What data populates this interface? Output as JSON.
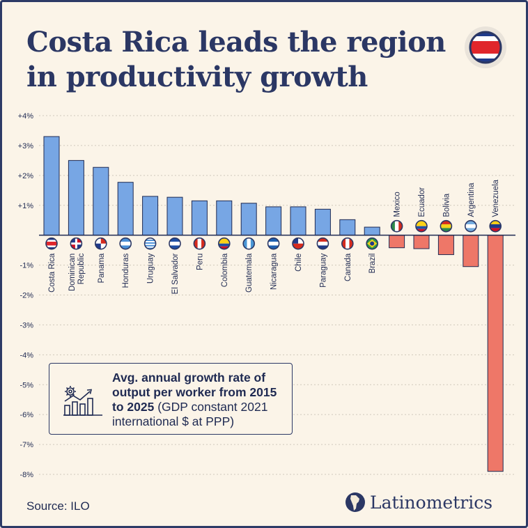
{
  "title_line1": "Costa Rica leads the region",
  "title_line2": "in productivity growth",
  "source": "Source: ILO",
  "brand": "Latinometrics",
  "legend_bold": "Avg. annual growth rate of output per worker from 2015 to 2025",
  "legend_rest": "(GDP constant 2021 international $ at PPP)",
  "colors": {
    "positive": "#77a6e4",
    "negative": "#ee7768",
    "text": "#1f2a52",
    "grid": "#cfc8bb",
    "background": "#fbf4e8",
    "border": "#2d3a66"
  },
  "chart_data": {
    "type": "bar",
    "categories": [
      "Costa Rica",
      "Dominican Republic",
      "Panama",
      "Honduras",
      "Uruguay",
      "El Salvador",
      "Peru",
      "Colombia",
      "Guatemala",
      "Nicaragua",
      "Chile",
      "Paraguay",
      "Canada",
      "Brazil",
      "Mexico",
      "Ecuador",
      "Bolivia",
      "Argentina",
      "Venezuela"
    ],
    "values": [
      3.3,
      2.5,
      2.27,
      1.77,
      1.3,
      1.27,
      1.15,
      1.15,
      1.07,
      0.95,
      0.95,
      0.87,
      0.52,
      0.27,
      -0.42,
      -0.45,
      -0.65,
      -1.05,
      -7.9
    ],
    "ylim": [
      -8,
      4
    ],
    "yticks": [
      "+4%",
      "+3%",
      "+2%",
      "+1%",
      "",
      "-1%",
      "-2%",
      "-3%",
      "-4%",
      "-5%",
      "-6%",
      "-7%",
      "-8%"
    ],
    "grid": true
  }
}
